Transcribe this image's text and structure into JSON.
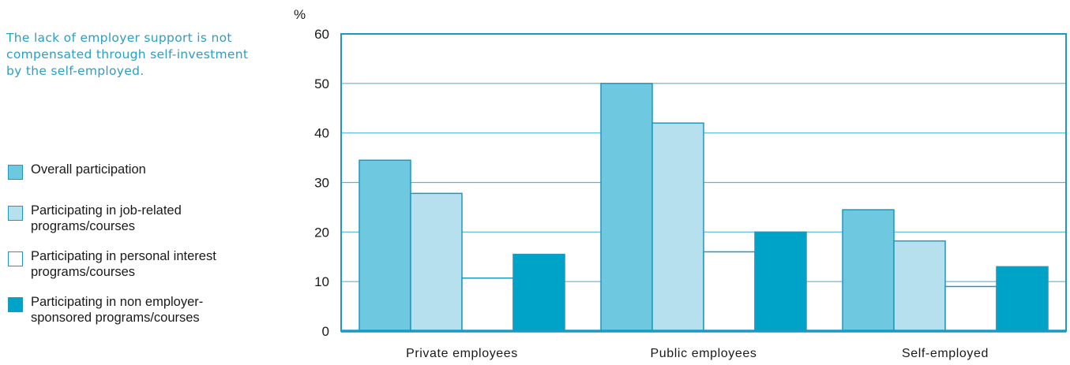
{
  "note": "The lack of employer support is not compensated through self-investment by the self-employed.",
  "legend": [
    {
      "label": "Overall participation",
      "color": "#6dc8e0"
    },
    {
      "label": "Participating in job-related\nprograms/courses",
      "color": "#b7e0ef"
    },
    {
      "label": "Participating in personal interest\nprograms/courses",
      "color": "#ffffff"
    },
    {
      "label": "Participating in non employer-\nsponsored programs/courses",
      "color": "#00a3c8"
    }
  ],
  "chart_data": {
    "type": "bar",
    "ylabel": "%",
    "ylim": [
      0,
      60
    ],
    "yticks": [
      0,
      10,
      20,
      30,
      40,
      50,
      60
    ],
    "categories": [
      "Private employees",
      "Public employees",
      "Self-employed"
    ],
    "series": [
      {
        "name": "Overall participation",
        "color": "#6dc8e0",
        "values": [
          34.5,
          50,
          24.5
        ]
      },
      {
        "name": "Participating in job-related programs/courses",
        "color": "#b7e0ef",
        "values": [
          27.8,
          42,
          18.2
        ]
      },
      {
        "name": "Participating in personal interest programs/courses",
        "color": "#ffffff",
        "values": [
          10.7,
          16,
          9
        ]
      },
      {
        "name": "Participating in non employer-sponsored programs/courses",
        "color": "#00a3c8",
        "values": [
          15.5,
          20,
          13
        ]
      }
    ],
    "grid": true,
    "gridColor": "#4fb8d8",
    "axisColor": "#1c99bf"
  }
}
